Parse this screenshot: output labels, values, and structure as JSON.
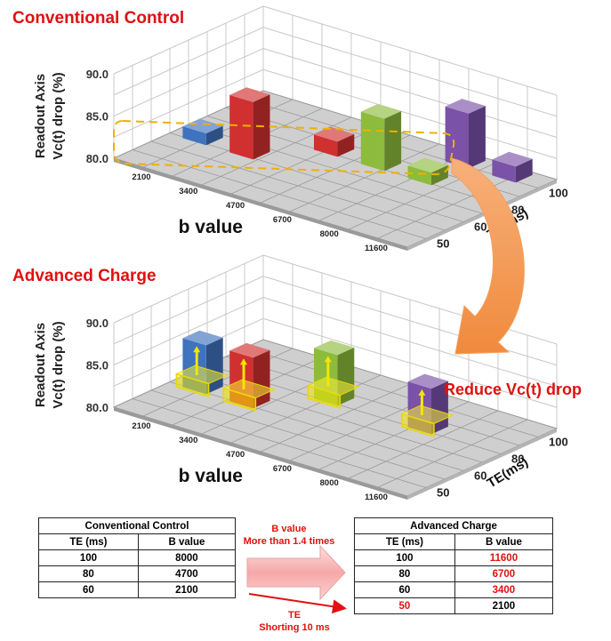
{
  "chart_data": [
    {
      "type": "bar3d",
      "title": "Conventional Control",
      "ylabel": "Readout Axis Vc(t) drop (%)",
      "xlabel": "b value",
      "zlabel": "TE(ms)",
      "ylim": [
        80,
        90
      ],
      "yticks": [
        "80.0",
        "85.0",
        "90.0"
      ],
      "x_categories": [
        "2100",
        "3400",
        "4700",
        "6700",
        "8000",
        "11600"
      ],
      "z_categories": [
        "50",
        "60",
        "80",
        "100"
      ],
      "bars": [
        {
          "b": "2100",
          "te": "60",
          "value": 81.4,
          "color": "#3f72bf"
        },
        {
          "b": "3400",
          "te": "60",
          "value": 86.8,
          "color": "#d03030"
        },
        {
          "b": "4700",
          "te": "80",
          "value": 81.8,
          "color": "#d03030"
        },
        {
          "b": "6700",
          "te": "80",
          "value": 86.2,
          "color": "#8dbb3d"
        },
        {
          "b": "8000",
          "te": "80",
          "value": 81.5,
          "color": "#8dbb3d"
        },
        {
          "b": "8000",
          "te": "100",
          "value": 86.5,
          "color": "#7a52a8"
        },
        {
          "b": "11600",
          "te": "100",
          "value": 81.9,
          "color": "#7a52a8"
        }
      ]
    },
    {
      "type": "bar3d",
      "title": "Advanced Charge",
      "ylabel": "Readout Axis Vc(t) drop (%)",
      "xlabel": "b value",
      "zlabel": "TE(ms)",
      "ylim": [
        80,
        90
      ],
      "yticks": [
        "80.0",
        "85.0",
        "90.0"
      ],
      "x_categories": [
        "2100",
        "3400",
        "4700",
        "6700",
        "8000",
        "11600"
      ],
      "z_categories": [
        "50",
        "60",
        "80",
        "100"
      ],
      "bars": [
        {
          "b": "2100",
          "te": "60",
          "value": 85.8,
          "color": "#3f72bf"
        },
        {
          "b": "3400",
          "te": "60",
          "value": 86.0,
          "color": "#d03030"
        },
        {
          "b": "4700",
          "te": "80",
          "value": 86.0,
          "color": "#8dbb3d"
        },
        {
          "b": "8000",
          "te": "80",
          "value": 85.4,
          "color": "#7a52a8"
        }
      ]
    }
  ],
  "annotation": {
    "reduce_label": "Reduce Vc(t) drop"
  },
  "tables": {
    "conventional": {
      "title": "Conventional Control",
      "col_te": "TE (ms)",
      "col_b": "B value",
      "rows": [
        {
          "te": "100",
          "b": "8000"
        },
        {
          "te": "80",
          "b": "4700"
        },
        {
          "te": "60",
          "b": "2100"
        }
      ]
    },
    "advanced": {
      "title": "Advanced Charge",
      "col_te": "TE (ms)",
      "col_b": "B value",
      "rows": [
        {
          "te": "100",
          "b": "11600"
        },
        {
          "te": "80",
          "b": "6700"
        },
        {
          "te": "60",
          "b": "3400"
        },
        {
          "te": "50",
          "b": "2100"
        }
      ]
    },
    "middle": {
      "bvalue_line1": "B value",
      "bvalue_line2": "More than 1.4 times",
      "te_line1": "TE",
      "te_line2": "Shorting 10 ms"
    }
  },
  "colors": {
    "accent_red": "#e01010",
    "highlight_yellow": "#f2e600",
    "dash_orange": "#f0b000"
  }
}
